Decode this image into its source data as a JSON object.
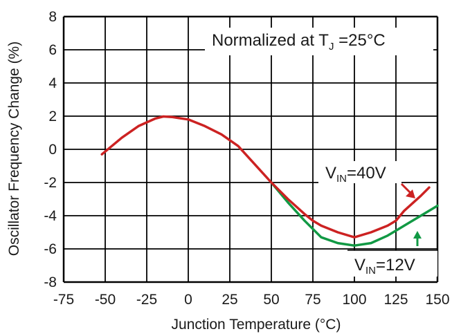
{
  "chart_data": {
    "type": "line",
    "xlabel": "Junction Temperature (°C)",
    "ylabel": "Oscillator Frequency Change (%)",
    "xlim": [
      -75,
      150
    ],
    "ylim": [
      -8,
      8
    ],
    "xticks": [
      -75,
      -50,
      -25,
      0,
      25,
      50,
      75,
      100,
      125,
      150
    ],
    "yticks": [
      -8,
      -6,
      -4,
      -2,
      0,
      2,
      4,
      6,
      8
    ],
    "grid": true,
    "colors": {
      "vin40": "#cc2222",
      "vin12": "#119944",
      "grid": "#000000"
    },
    "annotation": {
      "prefix": "Normalized at T",
      "subscript": "J",
      "suffix": " =25°C"
    },
    "series": [
      {
        "id": "vin40",
        "label_main": "V",
        "label_sub": "IN",
        "label_value": "=40V",
        "x": [
          -52,
          -40,
          -30,
          -20,
          -15,
          -10,
          0,
          10,
          20,
          30,
          40,
          50,
          60,
          70,
          75,
          80,
          90,
          100,
          110,
          120,
          125,
          130,
          140,
          145
        ],
        "y": [
          -0.3,
          0.7,
          1.4,
          1.85,
          1.98,
          1.95,
          1.8,
          1.4,
          0.9,
          0.2,
          -0.9,
          -2.0,
          -3.0,
          -3.9,
          -4.3,
          -4.6,
          -5.0,
          -5.3,
          -5.0,
          -4.6,
          -4.3,
          -3.7,
          -2.8,
          -2.3
        ]
      },
      {
        "id": "vin12",
        "label_main": "V",
        "label_sub": "IN",
        "label_value": "=12V",
        "x": [
          50,
          60,
          70,
          75,
          80,
          90,
          100,
          110,
          120,
          125,
          130,
          140,
          150
        ],
        "y": [
          -2.0,
          -3.2,
          -4.3,
          -4.8,
          -5.3,
          -5.65,
          -5.8,
          -5.65,
          -5.2,
          -4.9,
          -4.6,
          -4.0,
          -3.4
        ]
      }
    ]
  }
}
